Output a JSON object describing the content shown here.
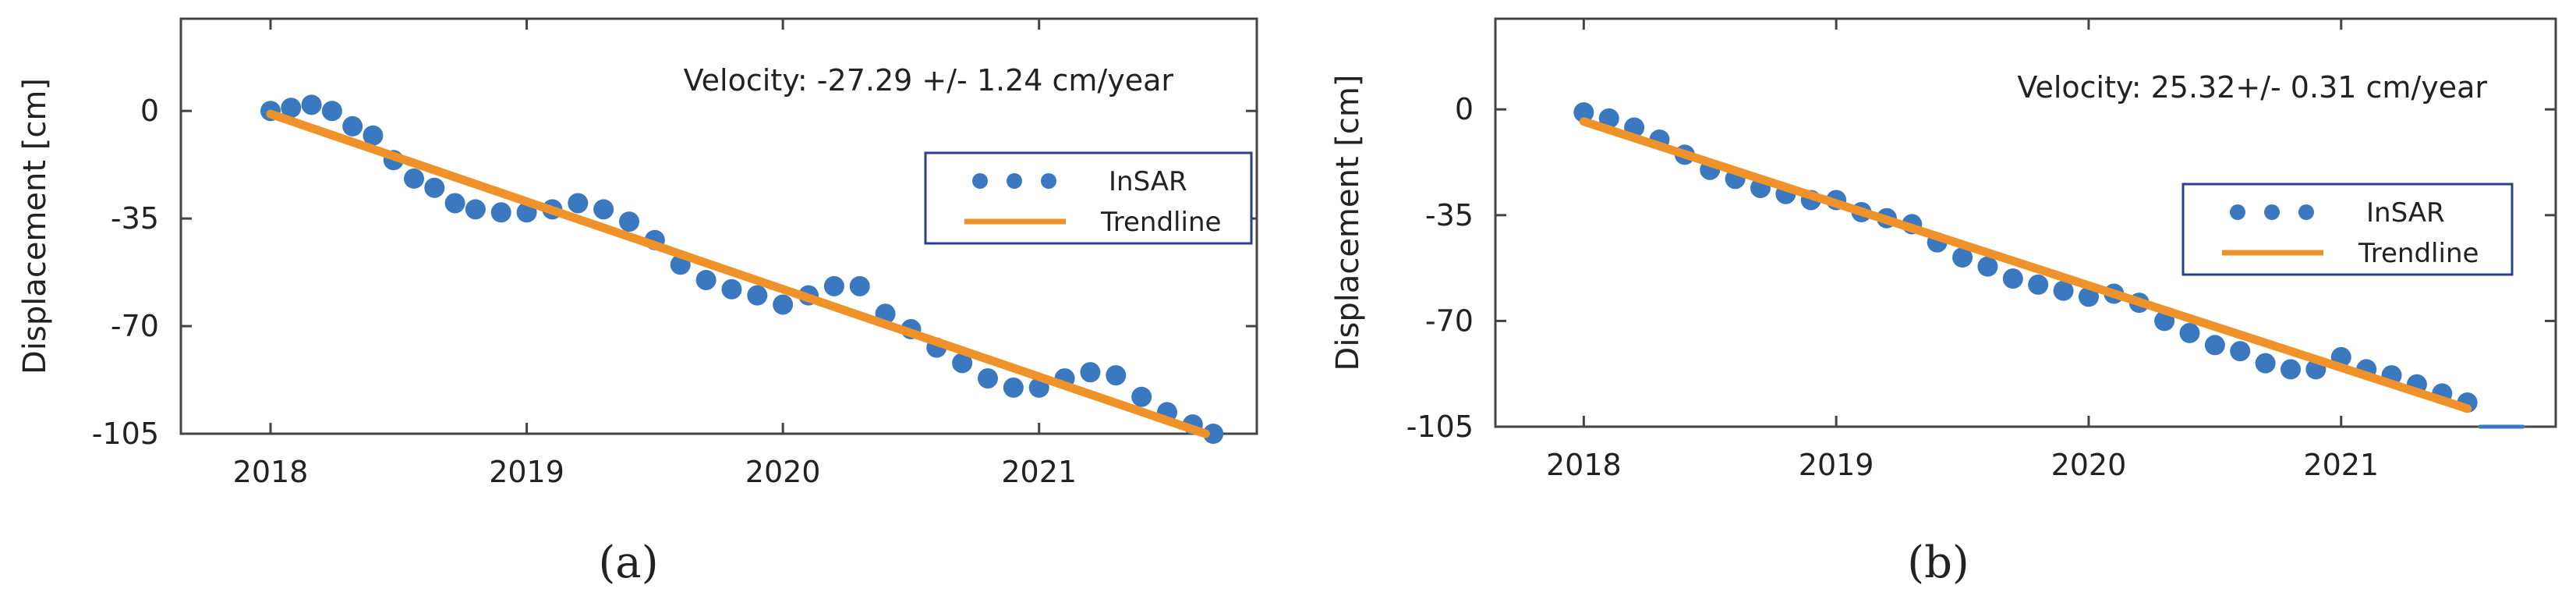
{
  "chart_data": [
    {
      "type": "scatter",
      "panel_label": "(a)",
      "annotation": "Velocity: -27.29 +/- 1.24 cm/year",
      "xlabel": "",
      "ylabel": "Displacement [cm]",
      "xlim": [
        2017.65,
        2021.85
      ],
      "ylim": [
        -105,
        30
      ],
      "xticks": [
        2018,
        2019,
        2020,
        2021
      ],
      "xtick_labels": [
        "2018",
        "2019",
        "2020",
        "2021"
      ],
      "yticks": [
        0,
        -35,
        -70,
        -105
      ],
      "ytick_labels": [
        "0",
        "-35",
        "-70",
        "-105"
      ],
      "legend": [
        "InSAR",
        "Trendline"
      ],
      "series": [
        {
          "name": "InSAR",
          "kind": "points",
          "color": "#3a78c0",
          "x": [
            2018.0,
            2018.08,
            2018.16,
            2018.24,
            2018.32,
            2018.4,
            2018.48,
            2018.56,
            2018.64,
            2018.72,
            2018.8,
            2018.9,
            2019.0,
            2019.1,
            2019.2,
            2019.3,
            2019.4,
            2019.5,
            2019.6,
            2019.7,
            2019.8,
            2019.9,
            2020.0,
            2020.1,
            2020.2,
            2020.3,
            2020.4,
            2020.5,
            2020.6,
            2020.7,
            2020.8,
            2020.9,
            2021.0,
            2021.1,
            2021.2,
            2021.3,
            2021.4,
            2021.5,
            2021.6,
            2021.68
          ],
          "y": [
            0,
            1,
            2,
            0,
            -5,
            -8,
            -16,
            -22,
            -25,
            -30,
            -32,
            -33,
            -33,
            -32,
            -30,
            -32,
            -36,
            -42,
            -50,
            -55,
            -58,
            -60,
            -63,
            -60,
            -57,
            -57,
            -66,
            -71,
            -77,
            -82,
            -87,
            -90,
            -90,
            -87,
            -85,
            -86,
            -93,
            -98,
            -102,
            -105
          ]
        },
        {
          "name": "Trendline",
          "kind": "line",
          "color": "#f0922a",
          "x": [
            2018.0,
            2021.65
          ],
          "y": [
            -1,
            -105
          ]
        }
      ]
    },
    {
      "type": "scatter",
      "panel_label": "(b)",
      "annotation": "Velocity: 25.32+/- 0.31 cm/year",
      "xlabel": "",
      "ylabel": "Displacement [cm]",
      "xlim": [
        2017.65,
        2021.85
      ],
      "ylim": [
        -105,
        30
      ],
      "xticks": [
        2018,
        2019,
        2020,
        2021
      ],
      "xtick_labels": [
        "2018",
        "2019",
        "2020",
        "2021"
      ],
      "yticks": [
        0,
        -35,
        -70,
        -105
      ],
      "ytick_labels": [
        "0",
        "-35",
        "-70",
        "-105"
      ],
      "legend": [
        "InSAR",
        "Trendline"
      ],
      "series": [
        {
          "name": "InSAR",
          "kind": "points",
          "color": "#3a78c0",
          "x": [
            2018.0,
            2018.1,
            2018.2,
            2018.3,
            2018.4,
            2018.5,
            2018.6,
            2018.7,
            2018.8,
            2018.9,
            2019.0,
            2019.1,
            2019.2,
            2019.3,
            2019.4,
            2019.5,
            2019.6,
            2019.7,
            2019.8,
            2019.9,
            2020.0,
            2020.1,
            2020.2,
            2020.3,
            2020.4,
            2020.5,
            2020.6,
            2020.7,
            2020.8,
            2020.9,
            2021.0,
            2021.1,
            2021.2,
            2021.3,
            2021.4,
            2021.5
          ],
          "y": [
            -1,
            -3,
            -6,
            -10,
            -15,
            -20,
            -23,
            -26,
            -28,
            -30,
            -30,
            -34,
            -36,
            -38,
            -44,
            -49,
            -52,
            -56,
            -58,
            -60,
            -62,
            -61,
            -64,
            -70,
            -74,
            -78,
            -80,
            -84,
            -86,
            -86,
            -82,
            -86,
            -88,
            -91,
            -94,
            -97
          ]
        },
        {
          "name": "Trendline",
          "kind": "line",
          "color": "#f0922a",
          "x": [
            2018.0,
            2021.5
          ],
          "y": [
            -4,
            -99
          ]
        },
        {
          "name": "Tail",
          "kind": "line",
          "color": "#3a78c0",
          "x": [
            2021.55,
            2021.72
          ],
          "y": [
            -105,
            -105
          ]
        }
      ]
    }
  ]
}
